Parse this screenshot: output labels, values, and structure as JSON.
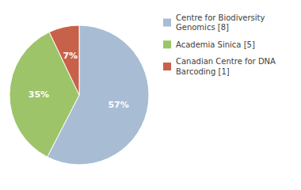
{
  "chart_data": {
    "type": "pie",
    "categories": [
      "Centre for Biodiversity\nGenomics [8]",
      "Academia Sinica [5]",
      "Canadian Centre for DNA\nBarcoding [1]"
    ],
    "values": [
      57,
      35,
      7
    ],
    "value_labels": [
      "57%",
      "35%",
      "7%"
    ],
    "colors": [
      "#a8bcd4",
      "#9dc469",
      "#c8614a"
    ],
    "data_labels": true,
    "legend": "right"
  }
}
